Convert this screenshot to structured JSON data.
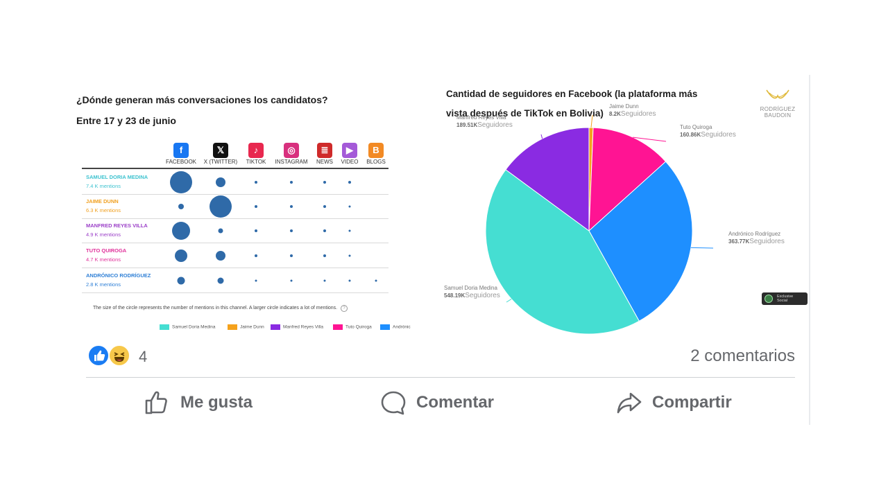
{
  "left_chart": {
    "title": "¿Dónde generan más conversaciones los candidatos?",
    "subtitle": "Entre 17 y 23 de junio",
    "channels": [
      {
        "label": "FACEBOOK",
        "icon": "facebook-icon",
        "glyph": "f",
        "color": "#1877f2"
      },
      {
        "label": "X (TWITTER)",
        "icon": "x-twitter-icon",
        "glyph": "𝕏",
        "color": "#111111"
      },
      {
        "label": "TIKTOK",
        "icon": "tiktok-icon",
        "glyph": "♪",
        "color": "#e8284f"
      },
      {
        "label": "INSTAGRAM",
        "icon": "instagram-icon",
        "glyph": "◎",
        "color": "#d8307e"
      },
      {
        "label": "NEWS",
        "icon": "news-icon",
        "glyph": "≣",
        "color": "#cf2a2a"
      },
      {
        "label": "VIDEO",
        "icon": "video-icon",
        "glyph": "▶",
        "color": "#a45ad8"
      },
      {
        "label": "BLOGS",
        "icon": "blogs-icon",
        "glyph": "B",
        "color": "#f28a24"
      }
    ],
    "candidates": [
      {
        "name": "SAMUEL DORIA MEDINA",
        "mentions": "7.4 K mentions",
        "color": "#3fc3d0",
        "sizes": [
          32,
          14,
          4,
          4,
          4,
          4,
          0
        ]
      },
      {
        "name": "JAIME DUNN",
        "mentions": "6.3 K mentions",
        "color": "#f0a020",
        "sizes": [
          8,
          32,
          4,
          4,
          4,
          3,
          0
        ]
      },
      {
        "name": "MANFRED REYES VILLA",
        "mentions": "4.9 K mentions",
        "color": "#9b3fc8",
        "sizes": [
          26,
          7,
          4,
          4,
          4,
          3,
          0
        ]
      },
      {
        "name": "TUTO QUIROGA",
        "mentions": "4.7 K mentions",
        "color": "#e0309a",
        "sizes": [
          18,
          14,
          4,
          4,
          4,
          3,
          0
        ]
      },
      {
        "name": "ANDRÓNICO RODRÍGUEZ",
        "mentions": "2.8 K mentions",
        "color": "#2e7fd6",
        "sizes": [
          11,
          9,
          3,
          3,
          3,
          3,
          3
        ]
      }
    ],
    "footnote": "The size of the circle represents the number of mentions in this channel. A larger circle indicates a lot of mentions.",
    "legend": [
      {
        "label": "Samuel Doria Medina",
        "color": "#45ded2"
      },
      {
        "label": "Jaime Dunn",
        "color": "#f5a21c"
      },
      {
        "label": "Manfred Reyes Villa",
        "color": "#8a2be2"
      },
      {
        "label": "Tuto Quiroga",
        "color": "#ff1493"
      },
      {
        "label": "Andrónic",
        "color": "#1e8fff"
      }
    ]
  },
  "chart_data": {
    "type": "pie",
    "title_line1": "Cantidad de seguidores en Facebook (la plataforma más",
    "title_line2": "vista después de TikTok en Bolivia)",
    "unit_label": "Seguidores",
    "slices": [
      {
        "name": "Jaime Dunn",
        "value_label": "8.2K",
        "value": 8.2,
        "color": "#f5a21c"
      },
      {
        "name": "Tuto Quiroga",
        "value_label": "160.86K",
        "value": 160.86,
        "color": "#ff1493"
      },
      {
        "name": "Andrónico Rodríguez",
        "value_label": "363.77K",
        "value": 363.77,
        "color": "#1e8fff"
      },
      {
        "name": "Samuel Doria Medina",
        "value_label": "548.19K",
        "value": 548.19,
        "color": "#45ded2"
      },
      {
        "name": "Manfred Reyes Villa",
        "value_label": "189.51K",
        "value": 189.51,
        "color": "#8a2be2"
      }
    ]
  },
  "logo": {
    "line1": "RODRÍGUEZ",
    "line2": "BAUDOIN"
  },
  "badge": {
    "line1": "Exclusive",
    "line2": "Social"
  },
  "reactions": {
    "count": "4",
    "comments": "2 comentarios"
  },
  "actions": {
    "like": "Me gusta",
    "comment": "Comentar",
    "share": "Compartir"
  }
}
